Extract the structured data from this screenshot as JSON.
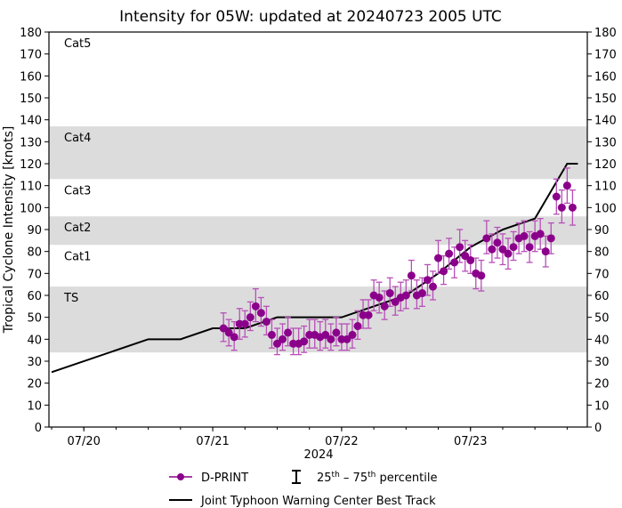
{
  "chart_data": {
    "type": "scatter",
    "title": "Intensity for 05W: updated at 20240723 2005 UTC",
    "ylabel": "Tropical Cyclone Intensity [knots]",
    "xlabel": "2024",
    "ylim": [
      0,
      180
    ],
    "xlim": [
      "2024-07-19T17:30Z",
      "2024-07-23T21:45Z"
    ],
    "yticks": [
      0,
      10,
      20,
      30,
      40,
      50,
      60,
      70,
      80,
      90,
      100,
      110,
      120,
      130,
      140,
      150,
      160,
      170,
      180
    ],
    "xticks": [
      {
        "date": "2024-07-20T00:00Z",
        "label": "07/20"
      },
      {
        "date": "2024-07-21T00:00Z",
        "label": "07/21"
      },
      {
        "date": "2024-07-22T00:00Z",
        "label": "07/22"
      },
      {
        "date": "2024-07-23T00:00Z",
        "label": "07/23"
      }
    ],
    "grid": false,
    "category_bands": [
      {
        "label": "TS",
        "min": 34,
        "max": 64,
        "shaded": true
      },
      {
        "label": "Cat1",
        "min": 64,
        "max": 83,
        "shaded": false
      },
      {
        "label": "Cat2",
        "min": 83,
        "max": 96,
        "shaded": true
      },
      {
        "label": "Cat3",
        "min": 96,
        "max": 113,
        "shaded": false
      },
      {
        "label": "Cat4",
        "min": 113,
        "max": 137,
        "shaded": true
      },
      {
        "label": "Cat5",
        "min": 137,
        "max": 180,
        "shaded": false
      }
    ],
    "band_color": "#dcdcdc",
    "series": [
      {
        "name": "D-PRINT",
        "color": "#8b008b",
        "start": "2024-07-21T02:00Z",
        "step_hours": 1,
        "values": [
          45,
          43,
          41,
          47,
          47,
          50,
          55,
          52,
          48,
          42,
          38,
          40,
          43,
          38,
          38,
          39,
          42,
          42,
          41,
          42,
          40,
          43,
          40,
          40,
          42,
          46,
          51,
          51,
          60,
          59,
          55,
          61,
          57,
          59,
          60,
          69,
          60,
          61,
          67,
          64,
          77,
          71,
          79,
          75,
          82,
          78,
          76,
          70,
          69,
          86,
          81,
          84,
          81,
          79,
          82,
          86,
          87,
          82,
          87,
          88,
          80,
          86,
          105,
          100,
          110,
          100
        ],
        "p25": [
          39,
          37,
          35,
          40,
          41,
          44,
          48,
          46,
          42,
          36,
          33,
          35,
          37,
          33,
          33,
          34,
          36,
          36,
          35,
          36,
          35,
          37,
          35,
          35,
          36,
          40,
          45,
          45,
          53,
          52,
          49,
          55,
          51,
          53,
          54,
          62,
          54,
          55,
          60,
          58,
          70,
          65,
          72,
          68,
          75,
          71,
          70,
          63,
          62,
          79,
          75,
          77,
          74,
          72,
          76,
          79,
          80,
          75,
          80,
          81,
          73,
          79,
          97,
          93,
          102,
          92
        ],
        "p75": [
          52,
          49,
          48,
          54,
          53,
          57,
          63,
          59,
          55,
          49,
          45,
          47,
          50,
          45,
          45,
          46,
          49,
          49,
          48,
          49,
          47,
          50,
          47,
          47,
          49,
          53,
          58,
          58,
          67,
          66,
          62,
          68,
          64,
          66,
          67,
          76,
          67,
          68,
          74,
          71,
          85,
          78,
          86,
          82,
          90,
          85,
          83,
          77,
          76,
          94,
          88,
          91,
          88,
          86,
          89,
          93,
          94,
          89,
          94,
          95,
          87,
          93,
          113,
          108,
          118,
          108
        ]
      },
      {
        "name": "Joint Typhoon Warning Center Best Track",
        "color": "#000000",
        "points": [
          {
            "t": "2024-07-19T18:00Z",
            "v": 25
          },
          {
            "t": "2024-07-20T12:00Z",
            "v": 40
          },
          {
            "t": "2024-07-20T18:00Z",
            "v": 40
          },
          {
            "t": "2024-07-21T00:00Z",
            "v": 45
          },
          {
            "t": "2024-07-21T06:00Z",
            "v": 45
          },
          {
            "t": "2024-07-21T12:00Z",
            "v": 50
          },
          {
            "t": "2024-07-21T18:00Z",
            "v": 50
          },
          {
            "t": "2024-07-22T00:00Z",
            "v": 50
          },
          {
            "t": "2024-07-22T06:00Z",
            "v": 55
          },
          {
            "t": "2024-07-22T12:00Z",
            "v": 60
          },
          {
            "t": "2024-07-22T18:00Z",
            "v": 70
          },
          {
            "t": "2024-07-23T00:00Z",
            "v": 82
          },
          {
            "t": "2024-07-23T06:00Z",
            "v": 90
          },
          {
            "t": "2024-07-23T12:00Z",
            "v": 95
          },
          {
            "t": "2024-07-23T18:00Z",
            "v": 120
          },
          {
            "t": "2024-07-23T20:00Z",
            "v": 120
          }
        ]
      }
    ],
    "legend": {
      "position": "bottom",
      "dprint": "D-PRINT",
      "percentile": "25th – 75th percentile",
      "best_track": "Joint Typhoon Warning Center Best Track"
    }
  }
}
